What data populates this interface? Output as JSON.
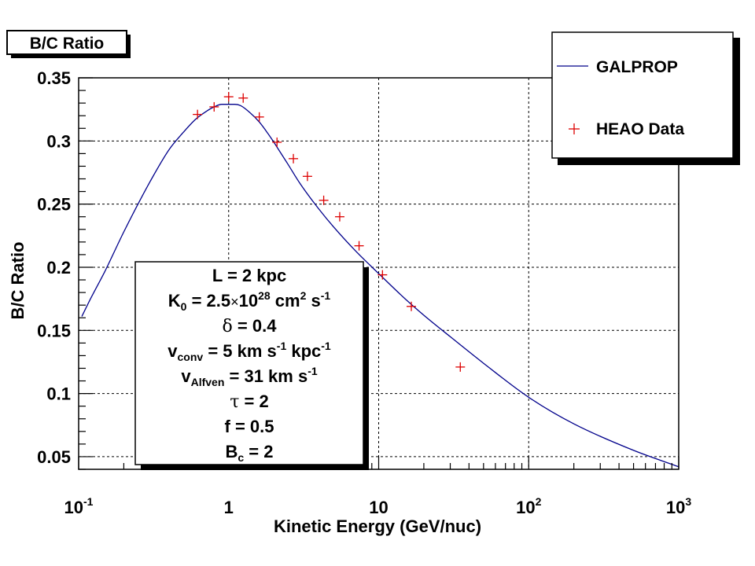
{
  "title": "B/C Ratio",
  "chart_data": {
    "type": "line",
    "title": "B/C Ratio",
    "xlabel": "Kinetic Energy (GeV/nuc)",
    "ylabel": "B/C Ratio",
    "xscale": "log",
    "xlim": [
      0.1,
      1000
    ],
    "ylim": [
      0.04,
      0.35
    ],
    "grid": true,
    "legend_position": "top-right",
    "x_tick_labels": [
      {
        "base": "10",
        "exp": "-1"
      },
      {
        "base": "1",
        "exp": ""
      },
      {
        "base": "10",
        "exp": ""
      },
      {
        "base": "10",
        "exp": "2"
      },
      {
        "base": "10",
        "exp": "3"
      }
    ],
    "y_tick_labels": [
      "0.05",
      "0.1",
      "0.15",
      "0.2",
      "0.25",
      "0.3",
      "0.35"
    ],
    "series": [
      {
        "name": "GALPROP",
        "style": "line",
        "color": "#00008b",
        "x": [
          0.105,
          0.12,
          0.15,
          0.2,
          0.3,
          0.4,
          0.5,
          0.6,
          0.7,
          0.8,
          0.9,
          1.0,
          1.1,
          1.2,
          1.4,
          1.6,
          1.8,
          2.0,
          2.5,
          3.0,
          4.0,
          5.0,
          7.0,
          10,
          15,
          20,
          30,
          50,
          100,
          200,
          500,
          1000
        ],
        "y": [
          0.161,
          0.175,
          0.197,
          0.228,
          0.268,
          0.293,
          0.307,
          0.317,
          0.323,
          0.327,
          0.329,
          0.329,
          0.329,
          0.328,
          0.322,
          0.315,
          0.307,
          0.299,
          0.281,
          0.266,
          0.246,
          0.232,
          0.213,
          0.195,
          0.175,
          0.162,
          0.145,
          0.124,
          0.097,
          0.076,
          0.055,
          0.042
        ]
      },
      {
        "name": "HEAO Data",
        "style": "markers",
        "color": "#dd0000",
        "x": [
          0.62,
          0.8,
          1.0,
          1.25,
          1.6,
          2.1,
          2.7,
          3.35,
          4.3,
          5.5,
          7.4,
          10.6,
          16.5,
          35
        ],
        "y": [
          0.321,
          0.327,
          0.335,
          0.334,
          0.319,
          0.299,
          0.286,
          0.272,
          0.253,
          0.24,
          0.217,
          0.194,
          0.169,
          0.121
        ]
      }
    ]
  },
  "parameters": [
    {
      "parts": [
        {
          "t": "L = 2 kpc"
        }
      ]
    },
    {
      "parts": [
        {
          "t": "K"
        },
        {
          "t": "0",
          "sub": true
        },
        {
          "t": " = 2.5"
        },
        {
          "t": "×",
          "times": true
        },
        {
          "t": "10"
        },
        {
          "t": "28",
          "sup": true
        },
        {
          "t": " cm"
        },
        {
          "t": "2",
          "sup": true
        },
        {
          "t": " s"
        },
        {
          "t": "-1",
          "sup": true
        }
      ]
    },
    {
      "parts": [
        {
          "t": "δ",
          "greek": true
        },
        {
          "t": " = 0.4"
        }
      ]
    },
    {
      "parts": [
        {
          "t": "v"
        },
        {
          "t": "conv",
          "sub": true
        },
        {
          "t": " = 5 km s"
        },
        {
          "t": "-1",
          "sup": true
        },
        {
          "t": " kpc"
        },
        {
          "t": "-1",
          "sup": true
        }
      ]
    },
    {
      "parts": [
        {
          "t": "v"
        },
        {
          "t": "Alfven",
          "sub": true
        },
        {
          "t": " = 31 km s"
        },
        {
          "t": "-1",
          "sup": true
        }
      ]
    },
    {
      "parts": [
        {
          "t": "τ",
          "greek": true
        },
        {
          "t": " = 2"
        }
      ]
    },
    {
      "parts": [
        {
          "t": "f = 0.5"
        }
      ]
    },
    {
      "parts": [
        {
          "t": "B"
        },
        {
          "t": "c",
          "sub": true
        },
        {
          "t": " = 2"
        }
      ]
    }
  ]
}
